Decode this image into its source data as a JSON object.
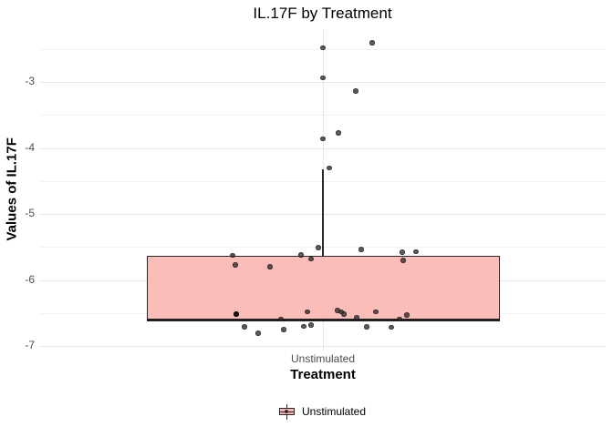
{
  "title": "IL.17F by Treatment",
  "y_axis": {
    "title": "Values of IL.17F",
    "ticks": [
      -3,
      -4,
      -5,
      -6,
      -7
    ],
    "minor_ticks": [
      -2.5,
      -3.5,
      -4.5,
      -5.5,
      -6.5
    ]
  },
  "x_axis": {
    "title": "Treatment",
    "categories": [
      "Unstimulated"
    ]
  },
  "legend": {
    "items": [
      {
        "label": "Unstimulated",
        "fill": "#fbb4ae"
      }
    ]
  },
  "chart_data": {
    "type": "boxplot",
    "overlay": "jittered points",
    "group": "Unstimulated",
    "title": "IL.17F by Treatment",
    "xlabel": "Treatment",
    "ylabel": "Values of IL.17F",
    "ylim": [
      -7.07,
      -2.21
    ],
    "grid": "major and minor horizontal, one vertical at category center",
    "legend_position": "bottom",
    "box": {
      "q3": -5.63,
      "median": -6.6,
      "q1": -6.63,
      "whisker_high": -4.33,
      "whisker_low": -6.63
    },
    "points_format": "[jitter_x_px, value, dark_flag?]",
    "points": [
      [
        408,
        -2.41
      ],
      [
        354,
        -2.48
      ],
      [
        354,
        -2.94
      ],
      [
        390,
        -3.14
      ],
      [
        371,
        -3.77
      ],
      [
        354,
        -3.86
      ],
      [
        361,
        -4.3
      ],
      [
        349,
        -5.51
      ],
      [
        396,
        -5.54
      ],
      [
        456,
        -5.57
      ],
      [
        441,
        -5.58
      ],
      [
        330,
        -5.62
      ],
      [
        255,
        -5.63
      ],
      [
        341,
        -5.68
      ],
      [
        442,
        -5.7
      ],
      [
        258,
        -5.77
      ],
      [
        296,
        -5.8
      ],
      [
        370,
        -6.46
      ],
      [
        337,
        -6.48
      ],
      [
        374,
        -6.48
      ],
      [
        412,
        -6.48
      ],
      [
        259,
        -6.52,
        1
      ],
      [
        377,
        -6.52
      ],
      [
        446,
        -6.53
      ],
      [
        391,
        -6.57
      ],
      [
        308,
        -6.59
      ],
      [
        438,
        -6.59
      ],
      [
        341,
        -6.68
      ],
      [
        333,
        -6.7
      ],
      [
        268,
        -6.71
      ],
      [
        402,
        -6.71
      ],
      [
        429,
        -6.72
      ],
      [
        311,
        -6.75
      ],
      [
        283,
        -6.81
      ]
    ],
    "colors": {
      "box_fill": "#fbb4ae",
      "box_border": "#2b2b2b",
      "point": "#333333",
      "grid_major": "#e6e6e6",
      "grid_minor": "#f2f2f2",
      "tick_label": "#4d4d4d"
    }
  }
}
